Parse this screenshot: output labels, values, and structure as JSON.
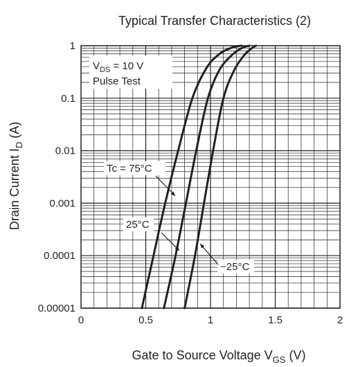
{
  "chart_data": {
    "type": "line",
    "title": "Typical Transfer Characteristics (2)",
    "xlabel": {
      "main": "Gate to Source Voltage  V",
      "sub": "GS",
      "unit": " (V)"
    },
    "ylabel": {
      "main": "Drain Current  I",
      "sub": "D",
      "unit": "  (A)"
    },
    "xlim": [
      0,
      2
    ],
    "ylim": [
      1e-05,
      1
    ],
    "yscale": "log",
    "grid": true,
    "xticks": [
      {
        "value": 0,
        "label": "0"
      },
      {
        "value": 0.5,
        "label": "0.5"
      },
      {
        "value": 1,
        "label": "1"
      },
      {
        "value": 1.5,
        "label": "1.5"
      },
      {
        "value": 2,
        "label": "2"
      }
    ],
    "yticks": [
      {
        "value": 1,
        "label": "1"
      },
      {
        "value": 0.1,
        "label": "0.1"
      },
      {
        "value": 0.01,
        "label": "0.01"
      },
      {
        "value": 0.001,
        "label": "0.001"
      },
      {
        "value": 0.0001,
        "label": "0.0001"
      },
      {
        "value": 1e-05,
        "label": "0.00001"
      }
    ],
    "conditions": {
      "vds_main": "V",
      "vds_sub": "DS",
      "vds_value": " = 10 V",
      "pulse": "Pulse Test"
    },
    "series": [
      {
        "name": "Tc = 75°C",
        "x": [
          0.47,
          0.56,
          0.65,
          0.75,
          0.86,
          0.97,
          1.07,
          1.17,
          1.24
        ],
        "y": [
          1e-05,
          0.0001,
          0.001,
          0.01,
          0.1,
          0.38,
          0.7,
          0.93,
          1
        ]
      },
      {
        "name": "25°C",
        "x": [
          0.64,
          0.73,
          0.81,
          0.89,
          0.98,
          1.07,
          1.17,
          1.25,
          1.3
        ],
        "y": [
          1e-05,
          0.0001,
          0.001,
          0.01,
          0.1,
          0.35,
          0.68,
          0.92,
          1
        ]
      },
      {
        "name": "−25°C",
        "x": [
          0.8,
          0.88,
          0.95,
          1.02,
          1.1,
          1.18,
          1.26,
          1.32,
          1.35
        ],
        "y": [
          1e-05,
          0.0001,
          0.001,
          0.01,
          0.1,
          0.33,
          0.66,
          0.9,
          1
        ]
      }
    ],
    "annotations": [
      {
        "text": "Tc = 75°C",
        "series": 0,
        "x": 0.72
      },
      {
        "text": "25°C",
        "series": 1,
        "x": 0.74
      },
      {
        "text": "−25°C",
        "series": 2,
        "x": 0.88
      }
    ]
  }
}
